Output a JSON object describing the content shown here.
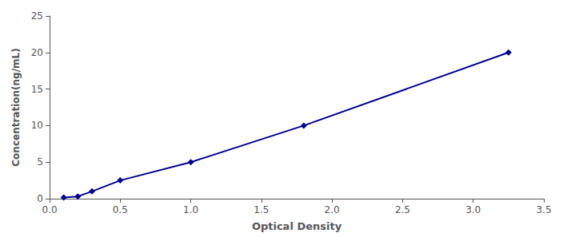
{
  "chart_data": {
    "type": "line",
    "x": [
      0.1,
      0.2,
      0.3,
      0.5,
      1.0,
      1.8,
      3.25
    ],
    "values": [
      0.156,
      0.312,
      1.0,
      2.5,
      5.0,
      10.0,
      20.0
    ],
    "xlabel": "Optical Density",
    "ylabel": "Concentration(ng/mL)",
    "xlim": [
      0,
      3.5
    ],
    "ylim": [
      0,
      25
    ],
    "xticks": [
      {
        "value": 0,
        "label": "0.0"
      },
      0.5,
      {
        "value": 1.0,
        "label": "1.0"
      },
      1.5,
      {
        "value": 2.0,
        "label": "2.0"
      },
      2.5,
      {
        "value": 3.0,
        "label": "3.0"
      },
      3.5
    ],
    "yticks": [
      0,
      5,
      10,
      15,
      20,
      25
    ],
    "color": "#00008B",
    "marker": "diamond",
    "grid": false
  }
}
